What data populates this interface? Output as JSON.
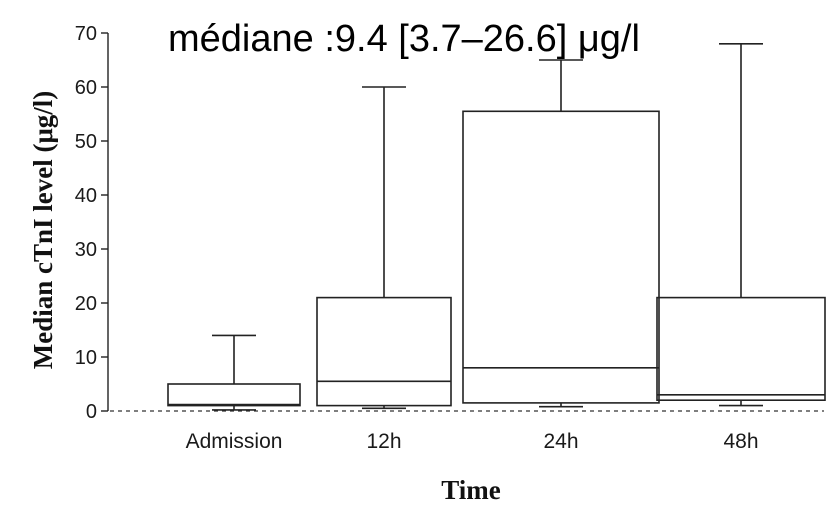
{
  "chart_data": {
    "type": "boxplot",
    "title": "",
    "annotation": "médiane :9.4 [3.7–26.6] μg/l",
    "ylabel": "Median cTnI level (μg/l)",
    "xlabel": "Time",
    "ylim": [
      0,
      70
    ],
    "yticks": [
      "0",
      "10",
      "20",
      "30",
      "40",
      "50",
      "60",
      "70"
    ],
    "baseline_dashed": true,
    "categories": [
      "Admission",
      "12h",
      "24h",
      "48h"
    ],
    "boxes": [
      {
        "category": "Admission",
        "min": 0.2,
        "q1": 1.0,
        "median": 1.2,
        "q3": 5.0,
        "max": 14.0
      },
      {
        "category": "12h",
        "min": 0.5,
        "q1": 1.0,
        "median": 5.5,
        "q3": 21.0,
        "max": 60.0
      },
      {
        "category": "24h",
        "min": 0.8,
        "q1": 1.5,
        "median": 8.0,
        "q3": 55.5,
        "max": 65.0
      },
      {
        "category": "48h",
        "min": 1.0,
        "q1": 2.0,
        "median": 3.0,
        "q3": 21.0,
        "max": 68.0
      }
    ]
  }
}
